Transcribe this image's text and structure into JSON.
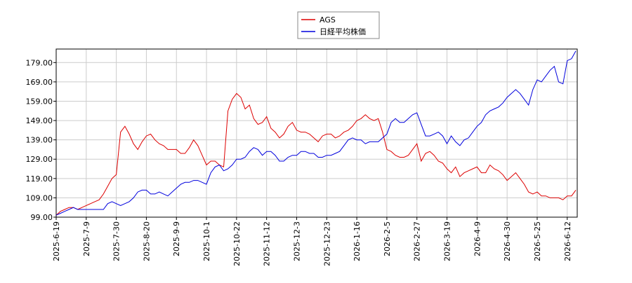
{
  "chart_data": {
    "type": "line",
    "categories": [
      "2025-6-19",
      null,
      null,
      null,
      null,
      null,
      null,
      "2025-7-9",
      null,
      null,
      null,
      null,
      null,
      null,
      "2025-7-30",
      null,
      null,
      null,
      null,
      null,
      null,
      "2025-8-20",
      null,
      null,
      null,
      null,
      null,
      null,
      "2025-9-9",
      null,
      null,
      null,
      null,
      null,
      null,
      "2025-10-1",
      null,
      null,
      null,
      null,
      null,
      null,
      "2025-10-22",
      null,
      null,
      null,
      null,
      null,
      null,
      "2025-11-12",
      null,
      null,
      null,
      null,
      null,
      null,
      "2025-12-3",
      null,
      null,
      null,
      null,
      null,
      null,
      "2025-12-23",
      null,
      null,
      null,
      null,
      null,
      null,
      "2026-1-16",
      null,
      null,
      null,
      null,
      null,
      null,
      "2026-2-5",
      null,
      null,
      null,
      null,
      null,
      null,
      "2026-2-27",
      null,
      null,
      null,
      null,
      null,
      null,
      "2026-3-19",
      null,
      null,
      null,
      null,
      null,
      null,
      "2026-4-9",
      null,
      null,
      null,
      null,
      null,
      null,
      "2026-4-30",
      null,
      null,
      null,
      null,
      null,
      null,
      "2026-5-25",
      null,
      null,
      null,
      null,
      null,
      null,
      "2026-6-12",
      null,
      null
    ],
    "series": [
      {
        "name": "AGS",
        "color": "#dd0000",
        "values": [
          100,
          102,
          103,
          104,
          104,
          103,
          104,
          105,
          106,
          107,
          108,
          111,
          115,
          119,
          121,
          143,
          146,
          142,
          137,
          134,
          138,
          141,
          142,
          139,
          137,
          136,
          134,
          134,
          134,
          132,
          132,
          135,
          139,
          136,
          131,
          126,
          128,
          128,
          126,
          125,
          154,
          160,
          163,
          161,
          155,
          157,
          150,
          147,
          148,
          151,
          145,
          143,
          140,
          142,
          146,
          148,
          144,
          143,
          143,
          142,
          140,
          138,
          141,
          142,
          142,
          140,
          141,
          143,
          144,
          146,
          149,
          150,
          152,
          150,
          149,
          150,
          143,
          134,
          133,
          131,
          130,
          130,
          131,
          134,
          137,
          128,
          132,
          133,
          131,
          128,
          127,
          124,
          122,
          125,
          120,
          122,
          123,
          124,
          125,
          122,
          122,
          126,
          124,
          123,
          121,
          118,
          120,
          122,
          119,
          116,
          112,
          111,
          112,
          110,
          110,
          109,
          109,
          109,
          108,
          110,
          110,
          113
        ]
      },
      {
        "name": "日経平均株価",
        "color": "#0000dd",
        "values": [
          100,
          101,
          102,
          103,
          104,
          103,
          103,
          103,
          103,
          103,
          103,
          103,
          106,
          107,
          106,
          105,
          106,
          107,
          109,
          112,
          113,
          113,
          111,
          111,
          112,
          111,
          110,
          112,
          114,
          116,
          117,
          117,
          118,
          118,
          117,
          116,
          122,
          125,
          126,
          123,
          124,
          126,
          129,
          129,
          130,
          133,
          135,
          134,
          131,
          133,
          133,
          131,
          128,
          128,
          130,
          131,
          131,
          133,
          133,
          132,
          132,
          130,
          130,
          131,
          131,
          132,
          133,
          136,
          139,
          140,
          139,
          139,
          137,
          138,
          138,
          138,
          140,
          142,
          148,
          150,
          148,
          148,
          150,
          152,
          153,
          147,
          141,
          141,
          142,
          143,
          141,
          137,
          141,
          138,
          136,
          139,
          140,
          143,
          146,
          148,
          152,
          154,
          155,
          156,
          158,
          161,
          163,
          165,
          163,
          160,
          157,
          165,
          170,
          169,
          172,
          175,
          177,
          169,
          168,
          180,
          181,
          185
        ]
      }
    ],
    "ylim": [
      99,
      186
    ],
    "yticks": [
      {
        "value": 99,
        "label": "99.00"
      },
      {
        "value": 109,
        "label": "109.00"
      },
      {
        "value": 119,
        "label": "119.00"
      },
      {
        "value": 129,
        "label": "129.00"
      },
      {
        "value": 139,
        "label": "139.00"
      },
      {
        "value": 149,
        "label": "149.00"
      },
      {
        "value": 159,
        "label": "159.00"
      },
      {
        "value": 169,
        "label": "169.00"
      },
      {
        "value": 179,
        "label": "179.00"
      }
    ],
    "grid": true,
    "legend": "top"
  }
}
